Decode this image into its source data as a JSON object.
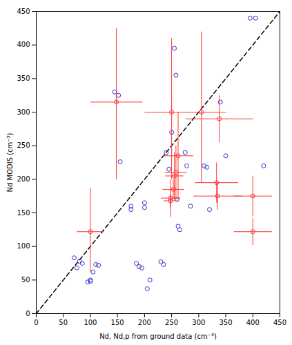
{
  "chart_data": {
    "type": "scatter",
    "xlabel": "Nd, Nd,p from ground data (cm⁻³)",
    "ylabel": "Nd MODIS (cm⁻³)",
    "xlim": [
      0,
      450
    ],
    "ylim": [
      0,
      450
    ],
    "xticks": [
      0,
      50,
      100,
      150,
      200,
      250,
      300,
      350,
      400,
      450
    ],
    "yticks": [
      0,
      50,
      100,
      150,
      200,
      250,
      300,
      350,
      400,
      450
    ],
    "grid": false,
    "series": [
      {
        "type": "line",
        "line_style": "dashed",
        "color": "#000000",
        "x": [
          0,
          450
        ],
        "y": [
          0,
          450
        ]
      },
      {
        "type": "scatter",
        "marker": "circle",
        "color": "#3333cc",
        "x": [
          70,
          75,
          80,
          85,
          95,
          100,
          100,
          105,
          110,
          115,
          145,
          152,
          155,
          175,
          175,
          185,
          190,
          195,
          200,
          200,
          205,
          210,
          230,
          235,
          240,
          245,
          250,
          255,
          258,
          260,
          262,
          265,
          275,
          278,
          285,
          310,
          315,
          320,
          340,
          350,
          395,
          405,
          420
        ],
        "y": [
          83,
          68,
          78,
          75,
          47,
          50,
          48,
          62,
          73,
          72,
          330,
          325,
          226,
          160,
          155,
          75,
          70,
          68,
          165,
          158,
          37,
          50,
          77,
          73,
          240,
          215,
          270,
          395,
          355,
          170,
          130,
          125,
          240,
          220,
          160,
          220,
          218,
          155,
          315,
          235,
          440,
          440,
          220
        ]
      },
      {
        "type": "scatter",
        "marker": "circle",
        "color": "#ff3333",
        "x": [
          100,
          148,
          250,
          262,
          258,
          255,
          253,
          248,
          248,
          305,
          333,
          335,
          338,
          400,
          400
        ],
        "y": [
          122,
          315,
          300,
          235,
          210,
          205,
          185,
          172,
          168,
          300,
          195,
          175,
          290,
          175,
          122
        ],
        "xerr": [
          25,
          48,
          50,
          28,
          20,
          17,
          20,
          18,
          13,
          45,
          40,
          45,
          62,
          35,
          35
        ],
        "yerr_lo": [
          60,
          115,
          100,
          65,
          40,
          35,
          15,
          28,
          10,
          105,
          30,
          20,
          35,
          30,
          20
        ],
        "yerr_hi": [
          65,
          110,
          110,
          65,
          40,
          35,
          15,
          28,
          10,
          120,
          30,
          20,
          35,
          30,
          20
        ]
      }
    ]
  }
}
